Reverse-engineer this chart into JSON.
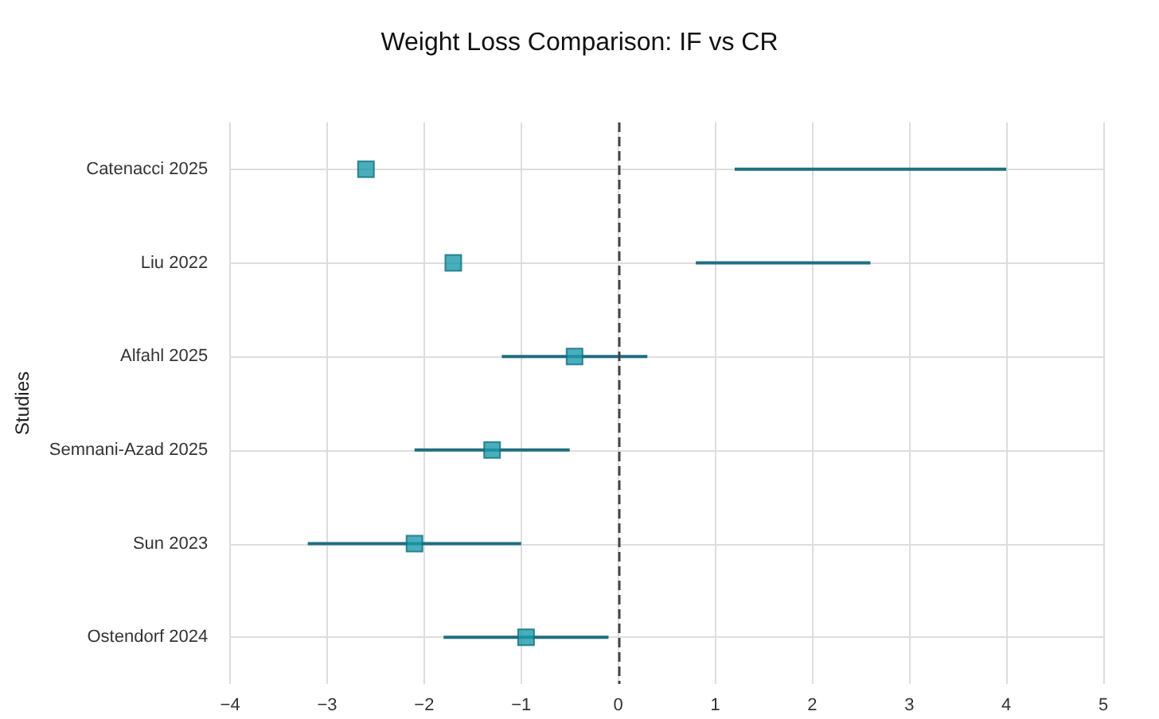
{
  "chart_data": {
    "type": "scatter",
    "title": "Weight Loss Comparison: IF vs CR",
    "ylabel": "Studies",
    "orientation": "horizontal",
    "categories": [
      "Catenacci 2025",
      "Liu 2022",
      "Alfahl 2025",
      "Semnani-Azad 2025",
      "Sun 2023",
      "Ostendorf 2024"
    ],
    "series": [
      {
        "type": "bar",
        "color": "#1f6f80",
        "base": [
          1.2,
          0.8,
          -1.2,
          -2.1,
          -3.2,
          -1.8
        ],
        "values": [
          2.8,
          1.8,
          1.5,
          1.6,
          2.2,
          1.7
        ]
      },
      {
        "color": "#1a9aab",
        "values": [
          -2.6,
          -1.7,
          -0.45,
          -1.3,
          -2.1,
          -0.95
        ]
      }
    ],
    "xlim": [
      -4,
      5
    ],
    "xticks": [
      -4,
      -3,
      -2,
      -1,
      0,
      1,
      2,
      3,
      4,
      5
    ],
    "ref_lines": [
      {
        "axis": "x",
        "value": 0,
        "color": "#444444",
        "line_style": "dashed"
      }
    ],
    "grid": true,
    "marker": "square"
  }
}
